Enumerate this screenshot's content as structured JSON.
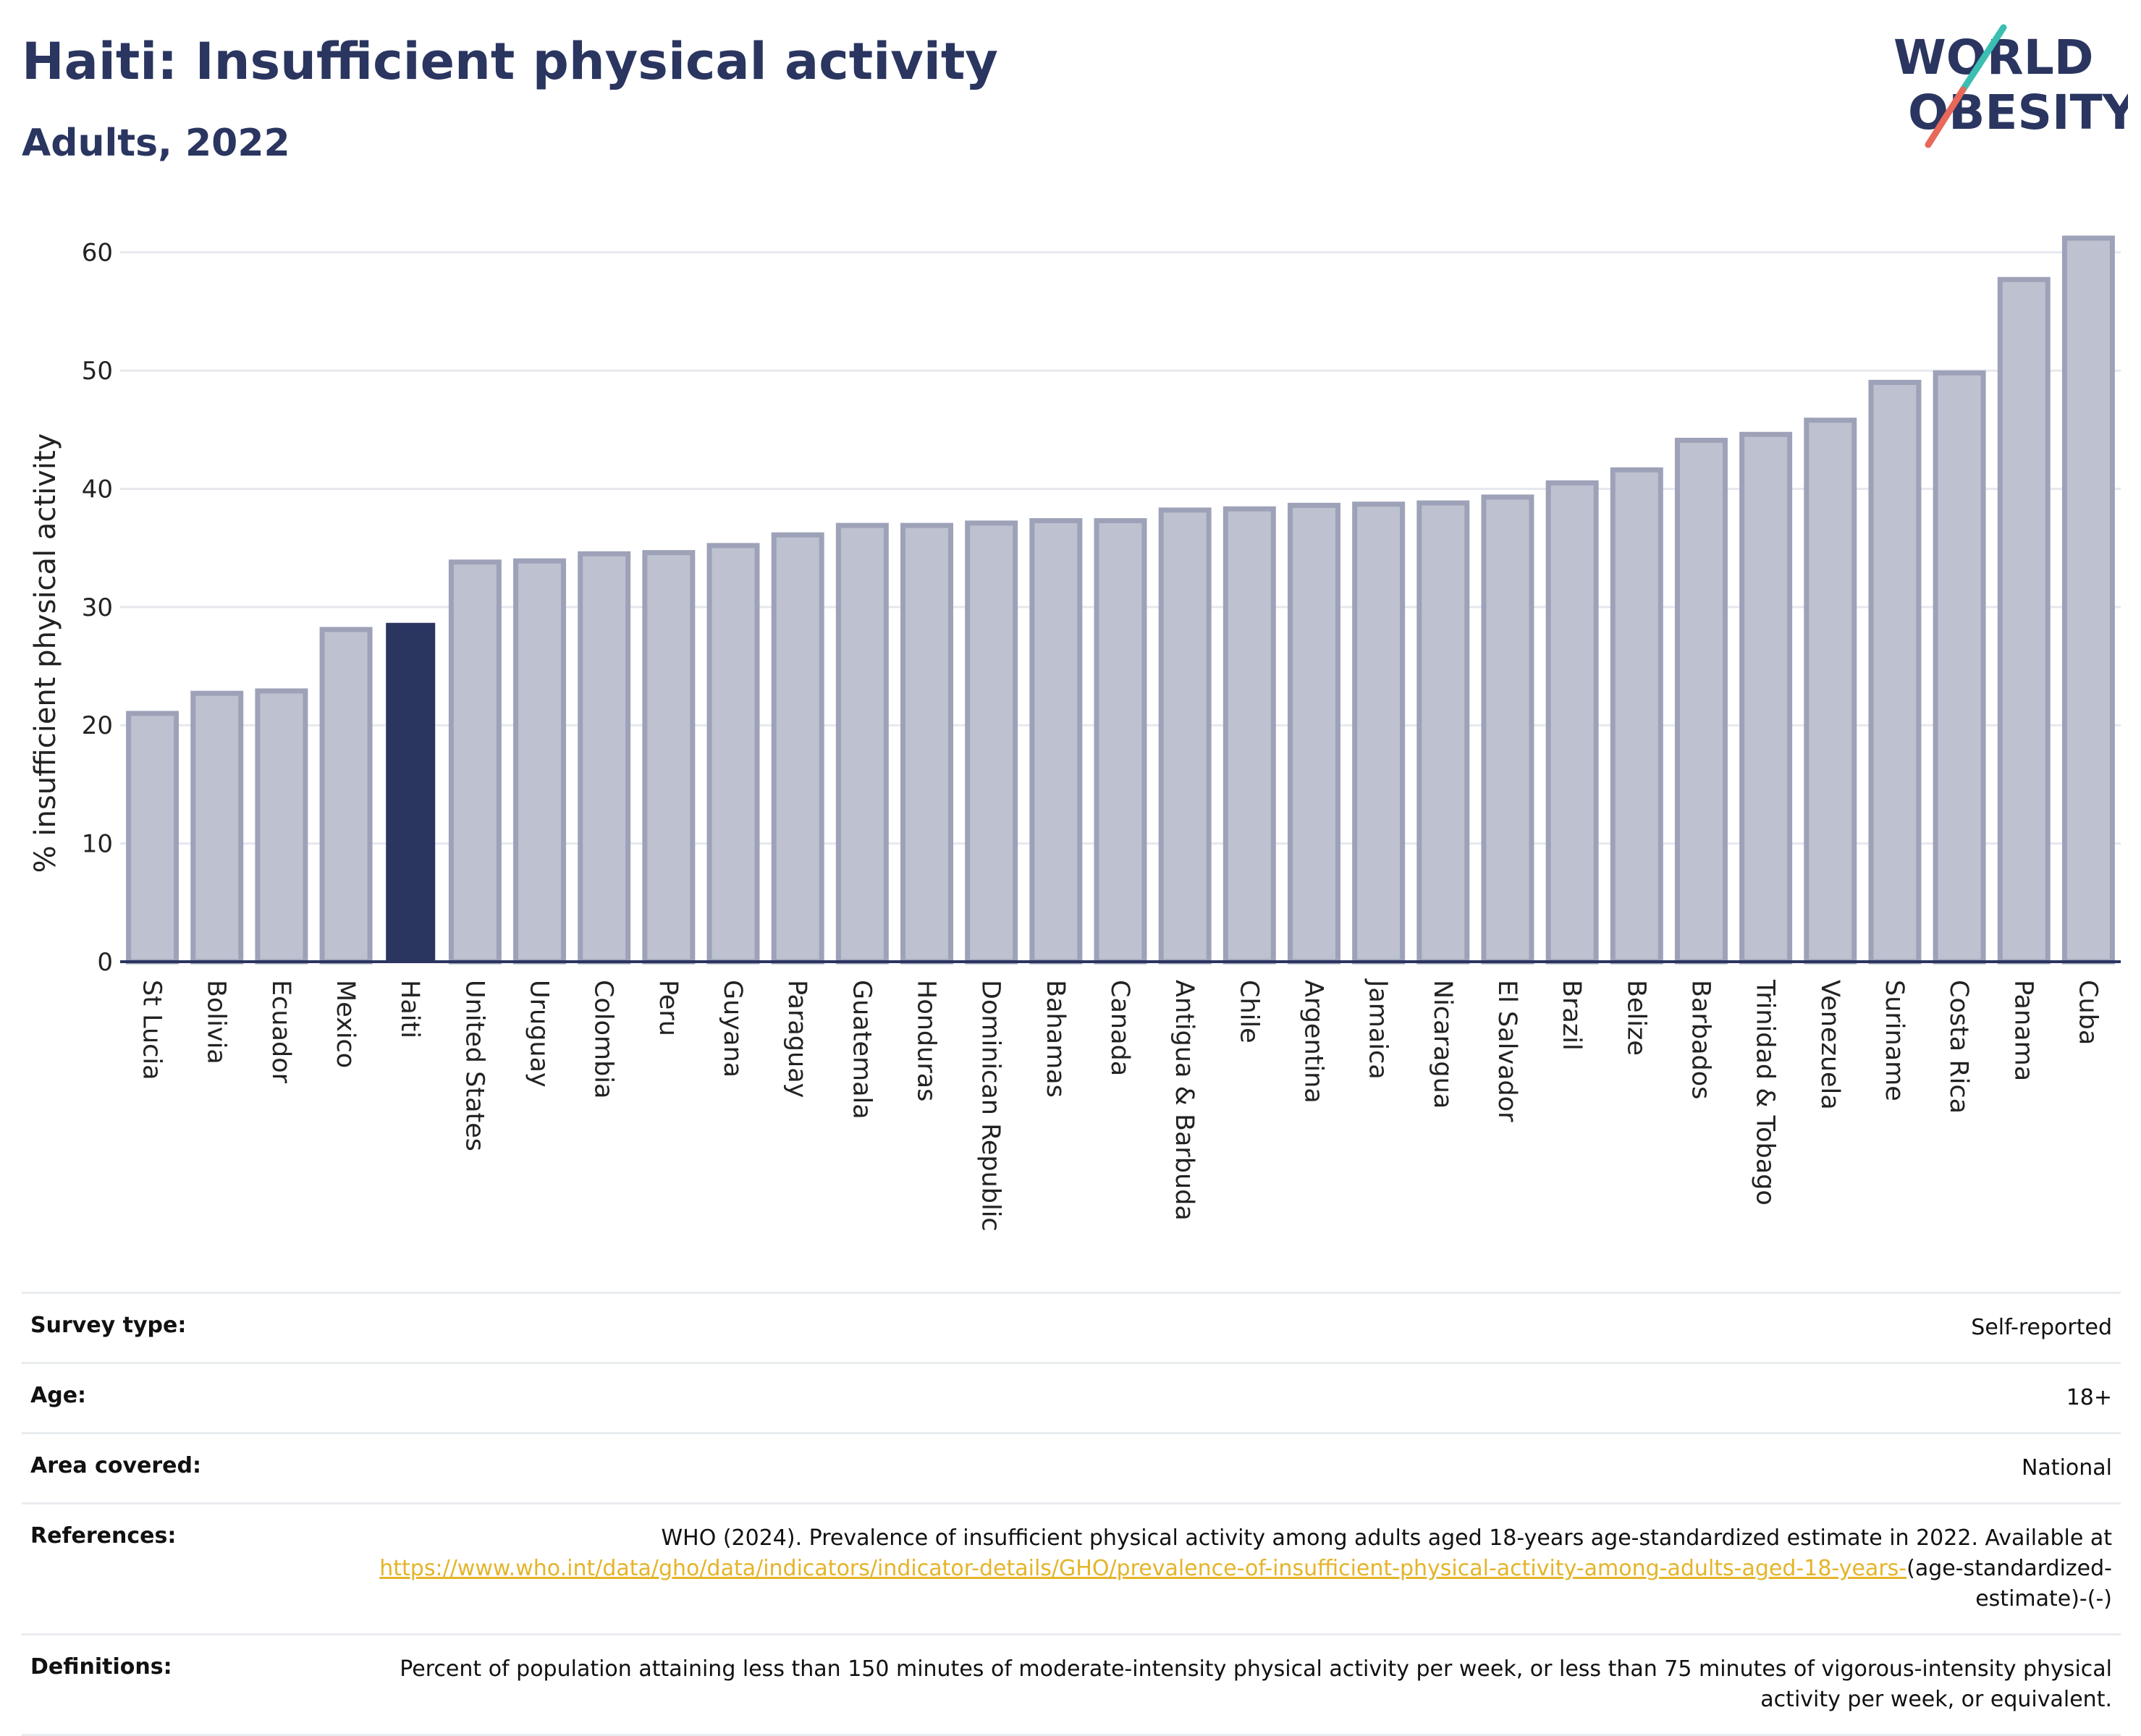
{
  "header": {
    "title": "Haiti: Insufficient physical activity",
    "subtitle": "Adults, 2022"
  },
  "logo": {
    "line1": "WORLD",
    "line2": "OBESITY"
  },
  "colors": {
    "highlight_bar": "#2a3560",
    "other_bar_fill": "#bec1cf",
    "other_bar_stroke": "#9da2b8",
    "text": "#2a3560",
    "link": "#e4b429",
    "logo_teal": "#3bbfb3",
    "logo_coral": "#e8685a"
  },
  "chart_data": {
    "type": "bar",
    "ylabel": "% insufficient physical activity",
    "ylim": [
      0,
      62
    ],
    "yticks": [
      0,
      10,
      20,
      30,
      40,
      50,
      60
    ],
    "grid": true,
    "highlight": "Haiti",
    "categories": [
      "St Lucia",
      "Bolivia",
      "Ecuador",
      "Mexico",
      "Haiti",
      "United States",
      "Uruguay",
      "Colombia",
      "Peru",
      "Guyana",
      "Paraguay",
      "Guatemala",
      "Honduras",
      "Dominican Republic",
      "Bahamas",
      "Canada",
      "Antigua & Barbuda",
      "Chile",
      "Argentina",
      "Jamaica",
      "Nicaragua",
      "El Salvador",
      "Brazil",
      "Belize",
      "Barbados",
      "Trinidad & Tobago",
      "Venezuela",
      "Suriname",
      "Costa Rica",
      "Panama",
      "Cuba"
    ],
    "values": [
      21.0,
      22.7,
      22.9,
      28.1,
      28.6,
      33.8,
      33.9,
      34.5,
      34.6,
      35.2,
      36.1,
      36.9,
      36.9,
      37.1,
      37.3,
      37.3,
      38.2,
      38.3,
      38.6,
      38.7,
      38.8,
      39.3,
      40.5,
      41.6,
      44.1,
      44.6,
      45.8,
      49.0,
      49.8,
      57.7,
      61.2
    ]
  },
  "info": {
    "survey_type_label": "Survey type:",
    "survey_type_value": "Self-reported",
    "age_label": "Age:",
    "age_value": "18+",
    "area_label": "Area covered:",
    "area_value": "National",
    "references_label": "References:",
    "references_text": "WHO (2024). Prevalence of insufficient physical activity among adults aged 18-years age-standardized estimate in 2022. Available at",
    "references_link": "https://www.who.int/data/gho/data/indicators/indicator-details/GHO/prevalence-of-insufficient-physical-activity-among-adults-aged-18-years-",
    "references_suffix": "(age-standardized-estimate)-(-)",
    "definitions_label": "Definitions:",
    "definitions_text": "Percent of population attaining less than 150 minutes of moderate-intensity physical activity per week, or less than 75 minutes of vigorous-intensity physical activity per week, or equivalent."
  }
}
